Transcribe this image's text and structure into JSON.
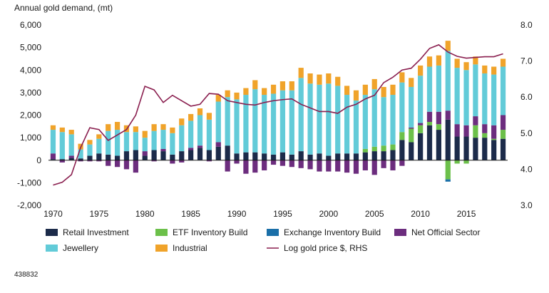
{
  "chart_data": {
    "type": "bar",
    "stacked": true,
    "title": "Annual gold demand, (mt)",
    "x": [
      1970,
      1971,
      1972,
      1973,
      1974,
      1975,
      1976,
      1977,
      1978,
      1979,
      1980,
      1981,
      1982,
      1983,
      1984,
      1985,
      1986,
      1987,
      1988,
      1989,
      1990,
      1991,
      1992,
      1993,
      1994,
      1995,
      1996,
      1997,
      1998,
      1999,
      2000,
      2001,
      2002,
      2003,
      2004,
      2005,
      2006,
      2007,
      2008,
      2009,
      2010,
      2011,
      2012,
      2013,
      2014,
      2015,
      2016,
      2017,
      2018,
      2019
    ],
    "xticks": [
      "1970",
      "1975",
      "1980",
      "1985",
      "1990",
      "1995",
      "2000",
      "2005",
      "2010",
      "2015"
    ],
    "ylim": [
      -2000,
      6000
    ],
    "yticks": [
      "-2,000",
      "-1,000",
      "0",
      "1,000",
      "2,000",
      "3,000",
      "4,000",
      "5,000",
      "6,000"
    ],
    "y2lim": [
      3.0,
      8.0
    ],
    "y2ticks": [
      "3.0",
      "4.0",
      "5.0",
      "6.0",
      "7.0",
      "8.0"
    ],
    "series": [
      {
        "name": "Retail Investment",
        "color": "#1c2b4a",
        "axis": "left",
        "values": [
          50,
          50,
          100,
          80,
          200,
          300,
          250,
          200,
          400,
          450,
          200,
          450,
          400,
          250,
          400,
          450,
          550,
          450,
          600,
          650,
          300,
          350,
          350,
          300,
          250,
          350,
          250,
          400,
          250,
          300,
          200,
          300,
          300,
          300,
          350,
          400,
          400,
          450,
          900,
          800,
          1200,
          1550,
          1350,
          1800,
          1050,
          1050,
          1000,
          1000,
          900,
          950
        ]
      },
      {
        "name": "ETF Inventory Build",
        "color": "#6cc04a",
        "axis": "left",
        "values": [
          0,
          0,
          0,
          0,
          0,
          0,
          0,
          0,
          0,
          0,
          0,
          0,
          0,
          0,
          0,
          0,
          0,
          0,
          0,
          0,
          0,
          0,
          0,
          0,
          0,
          0,
          0,
          0,
          0,
          0,
          0,
          0,
          0,
          0,
          150,
          200,
          250,
          250,
          350,
          600,
          350,
          150,
          250,
          -850,
          -150,
          -150,
          550,
          200,
          50,
          400
        ]
      },
      {
        "name": "Exchange Inventory Build",
        "color": "#1a6fa8",
        "axis": "left",
        "values": [
          0,
          0,
          0,
          0,
          0,
          0,
          0,
          0,
          0,
          0,
          0,
          0,
          0,
          0,
          0,
          0,
          0,
          0,
          0,
          0,
          0,
          0,
          0,
          0,
          0,
          0,
          0,
          0,
          0,
          0,
          0,
          0,
          0,
          0,
          0,
          0,
          0,
          0,
          0,
          0,
          0,
          0,
          0,
          -100,
          0,
          0,
          0,
          0,
          0,
          0
        ]
      },
      {
        "name": "Net Official Sector",
        "color": "#6c2d7e",
        "axis": "left",
        "values": [
          250,
          -100,
          100,
          -50,
          -50,
          -50,
          -250,
          -300,
          -400,
          -550,
          200,
          -50,
          100,
          -150,
          -100,
          100,
          100,
          -50,
          200,
          -500,
          -150,
          -600,
          -550,
          -450,
          -200,
          -250,
          -300,
          -350,
          -400,
          -500,
          -500,
          -500,
          -550,
          -600,
          -450,
          -650,
          -350,
          -450,
          -250,
          50,
          100,
          450,
          550,
          400,
          550,
          500,
          400,
          400,
          600,
          650
        ]
      },
      {
        "name": "Jewellery",
        "color": "#62cbd8",
        "axis": "left",
        "values": [
          1050,
          1200,
          950,
          400,
          500,
          650,
          1050,
          1150,
          850,
          800,
          600,
          850,
          850,
          950,
          1150,
          1200,
          1350,
          1350,
          1800,
          2150,
          2400,
          2550,
          2800,
          2600,
          2700,
          2750,
          2850,
          3250,
          3150,
          3050,
          3200,
          3000,
          2600,
          2350,
          2400,
          2550,
          2150,
          2200,
          2200,
          1800,
          2100,
          2000,
          2050,
          2650,
          2500,
          2450,
          2300,
          2250,
          2250,
          2150
        ]
      },
      {
        "name": "Industrial",
        "color": "#f0a32a",
        "axis": "left",
        "values": [
          200,
          200,
          200,
          250,
          200,
          200,
          300,
          350,
          300,
          250,
          300,
          300,
          250,
          250,
          300,
          300,
          300,
          300,
          300,
          300,
          300,
          300,
          400,
          300,
          400,
          400,
          400,
          450,
          450,
          450,
          450,
          400,
          400,
          450,
          450,
          450,
          450,
          450,
          450,
          400,
          450,
          450,
          450,
          450,
          400,
          350,
          350,
          350,
          350,
          350
        ]
      },
      {
        "name": "Log gold price $, RHS",
        "color": "#8a1f4f",
        "axis": "right",
        "type": "line",
        "values": [
          3.56,
          3.64,
          3.85,
          4.6,
          5.15,
          5.1,
          4.8,
          4.95,
          5.1,
          5.5,
          6.3,
          6.2,
          5.85,
          6.05,
          5.9,
          5.75,
          5.8,
          6.1,
          6.08,
          5.9,
          5.85,
          5.8,
          5.78,
          5.85,
          5.9,
          5.93,
          5.95,
          5.8,
          5.7,
          5.6,
          5.6,
          5.55,
          5.72,
          5.8,
          5.95,
          6.05,
          6.4,
          6.55,
          6.75,
          6.8,
          7.05,
          7.35,
          7.45,
          7.25,
          7.13,
          7.08,
          7.1,
          7.12,
          7.12,
          7.2
        ]
      }
    ],
    "legend_position": "bottom",
    "footnote": "438832"
  }
}
